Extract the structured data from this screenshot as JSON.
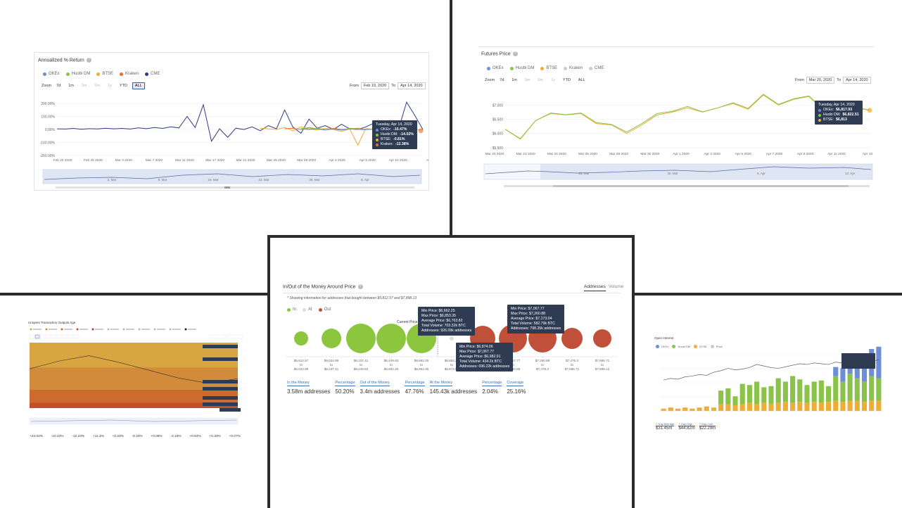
{
  "panels": {
    "annualized": {
      "title": "Annualized % Return",
      "legend": [
        {
          "name": "OKEx",
          "color": "#6d8ed8"
        },
        {
          "name": "Huobi DM",
          "color": "#8bc34a"
        },
        {
          "name": "BTSE",
          "color": "#f0ad33"
        },
        {
          "name": "Kraken",
          "color": "#e0703a"
        },
        {
          "name": "CME",
          "color": "#2e3a87"
        }
      ],
      "zoom_label": "Zoom",
      "zoom_buttons": [
        "7d",
        "1m",
        "3m",
        "6m",
        "1y",
        "YTD",
        "ALL"
      ],
      "from_label": "From",
      "from_value": "Feb 19, 2020",
      "to_label": "To",
      "to_value": "Apr 14, 2020",
      "tooltip": {
        "date": "Tuesday, Apr 14, 2020",
        "rows": [
          {
            "name": "OKEx",
            "value": "-10.47%",
            "color": "#6d8ed8"
          },
          {
            "name": "Huobi DM",
            "value": "-14.02%",
            "color": "#8bc34a"
          },
          {
            "name": "BTSE",
            "value": "-0.81%",
            "color": "#f0ad33"
          },
          {
            "name": "Kraken",
            "value": "-12.38%",
            "color": "#e0703a"
          }
        ]
      },
      "navigator_labels": [
        "2. Mar",
        "9. Mar",
        "16. Mar",
        "23. Mar",
        "30. Mar",
        "6. Apr"
      ]
    },
    "futures": {
      "title": "Futures Price",
      "legend": [
        {
          "name": "OKEx",
          "color": "#6d8ed8"
        },
        {
          "name": "Huobi DM",
          "color": "#8bc34a"
        },
        {
          "name": "BTSE",
          "color": "#f0ad33"
        },
        {
          "name": "Kraken",
          "color": "#cccccc"
        },
        {
          "name": "CME",
          "color": "#cccccc"
        }
      ],
      "zoom_label": "Zoom",
      "zoom_buttons": [
        "7d",
        "1m",
        "3m",
        "6m",
        "1y",
        "YTD",
        "ALL"
      ],
      "from_label": "From",
      "from_value": "Mar 20, 2020",
      "to_label": "To",
      "to_value": "Apr 14, 2020",
      "tooltip": {
        "date": "Tuesday, Apr 14, 2020",
        "rows": [
          {
            "name": "OKEx",
            "value": "$6,817.93",
            "color": "#6d8ed8"
          },
          {
            "name": "Huobi DM",
            "value": "$6,822.51",
            "color": "#8bc34a"
          },
          {
            "name": "BTSE",
            "value": "$6,813",
            "color": "#f0ad33"
          }
        ]
      },
      "navigator_labels": [
        "23. Mar",
        "30. Mar",
        "6. Apr",
        "13. Apr"
      ]
    },
    "utxo": {
      "title": "Unspent Transaction Outputs Age",
      "stats": [
        "+24.02%",
        "-10.43%",
        "-12.23%",
        "+11.3%",
        "+0.33%",
        "-0.34%",
        "+0.08%",
        "-2.16%",
        "+0.84%",
        "+0.33%",
        "+0.07%"
      ]
    },
    "iomap": {
      "title": "In/Out of the Money Around Price",
      "tabs": [
        "Addresses",
        "Volume"
      ],
      "note": "* Showing information for addresses that bought between $5,812.57 and $7,898.13",
      "legend": [
        {
          "name": "In",
          "color": "#8cc63f"
        },
        {
          "name": "At",
          "color": "#dddddd"
        },
        {
          "name": "Out",
          "color": "#c0503a"
        }
      ],
      "current_price_label": "Current Price",
      "tooltips": [
        {
          "rows": [
            "Min Price: $6,662.25",
            "Max Price: $6,853.35",
            "Average Price: $6,763.82",
            "Total Volume: 703.32k BTC",
            "Addresses: 926.09k addresses"
          ]
        },
        {
          "rows": [
            "Min Price: $6,874.06",
            "Max Price: $7,067.77",
            "Average Price: $6,982.91",
            "Total Volume: 434.2k BTC",
            "Addresses: 696.22k addresses"
          ]
        },
        {
          "rows": [
            "Min Price: $7,067.77",
            "Max Price: $7,260.88",
            "Average Price: $7,173.04",
            "Total Volume: 582.79k BTC",
            "Addresses: 798.35k addresses"
          ]
        }
      ],
      "stats": [
        {
          "label": "In the Money",
          "value": "3.58m addresses"
        },
        {
          "label": "Percentage",
          "value": "50.20%"
        },
        {
          "label": "Out of the Money",
          "value": "3.4m addresses"
        },
        {
          "label": "Percentage",
          "value": "47.76%"
        },
        {
          "label": "At the Money",
          "value": "145.43k addresses"
        },
        {
          "label": "Percentage",
          "value": "2.04%"
        },
        {
          "label": "Coverage",
          "value": "25.16%"
        }
      ]
    },
    "openinterest": {
      "title": "Open Interest",
      "legend": [
        {
          "name": "OKEx",
          "color": "#6d8ed8"
        },
        {
          "name": "Huobi DM",
          "color": "#8bc34a"
        },
        {
          "name": "BTSE",
          "color": "#f0ad33"
        },
        {
          "name": "Price",
          "color": "#cccccc"
        }
      ],
      "stats": [
        {
          "label": "7-Day Average",
          "value": "$31.45m"
        },
        {
          "label": "7-Day High",
          "value": "$44.82m"
        },
        {
          "label": "7-Day Low",
          "value": "$22.29m"
        }
      ]
    }
  },
  "chart_data": [
    {
      "type": "line",
      "title": "Annualized % Return",
      "yticks": [
        "200.00%",
        "100.00%",
        "0.00%",
        "-100.00%",
        "-200.00%"
      ],
      "xticks": [
        "Feb 20 2020",
        "Feb 26 2020",
        "Mar 3 2020",
        "Mar 7 2020",
        "Mar 11 2020",
        "Mar 17 2020",
        "Mar 21 2020",
        "Mar 25 2020",
        "Mar 29 2020",
        "Apr 2 2020",
        "Apr 6 2020",
        "Apr 10 2020",
        "Ap"
      ],
      "ylim": [
        -200,
        200
      ],
      "series": [
        {
          "name": "CME",
          "color": "#2e3a87",
          "x0": 0,
          "values": [
            5,
            3,
            8,
            2,
            6,
            4,
            10,
            5,
            8,
            3,
            12,
            6,
            15,
            8,
            20,
            12,
            100,
            15,
            190,
            -90,
            5,
            -60,
            10,
            0,
            20,
            -10,
            30,
            5,
            150,
            20,
            -30,
            80,
            10,
            30,
            0,
            40,
            5,
            0,
            20,
            50,
            10,
            5,
            0,
            210,
            110,
            0
          ]
        },
        {
          "name": "BTSE",
          "color": "#f0ad33",
          "x0": 25,
          "values": [
            10,
            5,
            0,
            15,
            -10,
            20,
            5,
            -5,
            10,
            0,
            -15,
            5,
            -120,
            10,
            -5,
            10,
            20,
            5,
            15,
            0,
            -5
          ]
        },
        {
          "name": "Kraken",
          "color": "#e0703a",
          "x0": 28,
          "values": [
            5,
            10,
            0,
            15,
            5,
            -5,
            10,
            0,
            5,
            10,
            0,
            5,
            -10,
            5,
            0,
            8,
            -12
          ]
        },
        {
          "name": "Huobi DM",
          "color": "#8bc34a",
          "x0": 30,
          "values": [
            8,
            5,
            10,
            0,
            5,
            -5,
            10,
            5,
            0,
            5,
            10,
            0,
            5,
            -14
          ]
        },
        {
          "name": "OKEx",
          "color": "#6d8ed8",
          "x0": 30,
          "values": [
            3,
            0,
            5,
            -3,
            2,
            -5,
            4,
            0,
            -2,
            3,
            0,
            -4,
            2,
            -10
          ]
        }
      ]
    },
    {
      "type": "line",
      "title": "Futures Price",
      "yticks": [
        "$7,000",
        "$6,500",
        "$6,000",
        "$5,500"
      ],
      "xticks": [
        "Mar 20 2020",
        "Mar 22 2020",
        "Mar 24 2020",
        "Mar 26 2020",
        "Mar 28 2020",
        "Mar 30 2020",
        "Apr 1 2020",
        "Apr 3 2020",
        "Apr 5 2020",
        "Apr 7 2020",
        "Apr 9 2020",
        "Apr 11 2020",
        "Apr 13"
      ],
      "ylim": [
        5500,
        7500
      ],
      "series": [
        {
          "name": "BTSE",
          "color": "#f0ad33",
          "values": [
            6150,
            5800,
            6450,
            6700,
            6650,
            6700,
            6350,
            6300,
            6000,
            6300,
            6650,
            6750,
            6900,
            6750,
            6900,
            7050,
            6850,
            7350,
            7000,
            7200,
            7300,
            6800,
            6950,
            6900,
            6813
          ]
        },
        {
          "name": "Huobi DM",
          "color": "#8bc34a",
          "values": [
            6150,
            5820,
            6450,
            6720,
            6660,
            6720,
            6380,
            6320,
            6050,
            6350,
            6700,
            6780,
            6950,
            6760,
            6900,
            7080,
            6880,
            7380,
            7020,
            7220,
            7320,
            6820,
            6960,
            6920,
            6822.51
          ]
        }
      ]
    },
    {
      "type": "area",
      "title": "Unspent Transaction Outputs Age",
      "series": [
        {
          "name": "band1",
          "color": "#d8a541",
          "values": [
            100,
            100,
            100,
            100,
            100,
            100,
            100,
            100
          ]
        },
        {
          "name": "band2",
          "color": "#d28b3a",
          "values": [
            62,
            62,
            62,
            62,
            62,
            62,
            62,
            62
          ]
        },
        {
          "name": "band3",
          "color": "#cc6a30",
          "values": [
            28,
            28,
            28,
            28,
            28,
            28,
            28,
            28
          ]
        },
        {
          "name": "band4",
          "color": "#c24f2a",
          "values": [
            8,
            8,
            8,
            8,
            8,
            8,
            8,
            8
          ]
        }
      ],
      "price_line": [
        60,
        72,
        80,
        70,
        58,
        46,
        38,
        45
      ]
    },
    {
      "type": "scatter",
      "title": "In/Out of the Money Around Price",
      "categories": [
        "$5,812.57 to $6,024.99",
        "$6,024.99 to $6,237.41",
        "$6,237.41 to $6,449.83",
        "$6,449.83 to $6,662.25",
        "$6,662.25 to $6,853.35",
        "$6,853.35 to $6,874.06",
        "$6,874.06 to $7,067.77",
        "$7,067.77 to $7,260.88",
        "$7,260.88 to $7,475.3",
        "$7,475.3 to $7,685.71",
        "$7,685.71 to $7,898.13"
      ],
      "series": [
        {
          "name": "In",
          "color": "#8cc63f",
          "values": [
            140,
            320,
            760,
            720,
            926
          ]
        },
        {
          "name": "At",
          "color": "#dddddd",
          "values": [
            145
          ]
        },
        {
          "name": "Out",
          "color": "#c0503a",
          "values": [
            696,
            798,
            760,
            420,
            280
          ]
        }
      ]
    },
    {
      "type": "bar",
      "title": "Open Interest",
      "series": [
        {
          "name": "OKEx",
          "color": "#6d8ed8",
          "values": [
            0,
            0,
            0,
            0,
            0,
            0,
            0,
            0,
            0,
            0,
            0,
            0,
            0,
            0,
            0,
            0,
            0,
            0,
            0,
            0,
            0,
            0,
            0,
            0,
            8,
            12,
            16,
            20,
            22,
            24,
            28
          ]
        },
        {
          "name": "Huobi DM",
          "color": "#8bc34a",
          "values": [
            0,
            0,
            0,
            0,
            0,
            0,
            0,
            0,
            12,
            14,
            8,
            18,
            16,
            20,
            14,
            16,
            22,
            18,
            24,
            20,
            16,
            18,
            20,
            14,
            22,
            18,
            24,
            20,
            18,
            22,
            20
          ]
        },
        {
          "name": "BTSE",
          "color": "#f0ad33",
          "values": [
            2,
            3,
            2,
            3,
            2,
            3,
            4,
            3,
            6,
            6,
            5,
            6,
            7,
            6,
            7,
            6,
            7,
            8,
            7,
            8,
            7,
            8,
            7,
            8,
            9,
            8,
            9,
            9,
            8,
            9,
            9
          ]
        }
      ],
      "price_line": [
        40,
        42,
        41,
        44,
        45,
        47,
        46,
        50,
        52,
        55,
        53,
        54,
        56,
        60,
        58,
        56,
        55,
        57,
        59,
        61,
        60,
        62,
        61,
        60,
        63,
        62,
        64,
        63,
        62,
        64,
        66
      ]
    }
  ]
}
